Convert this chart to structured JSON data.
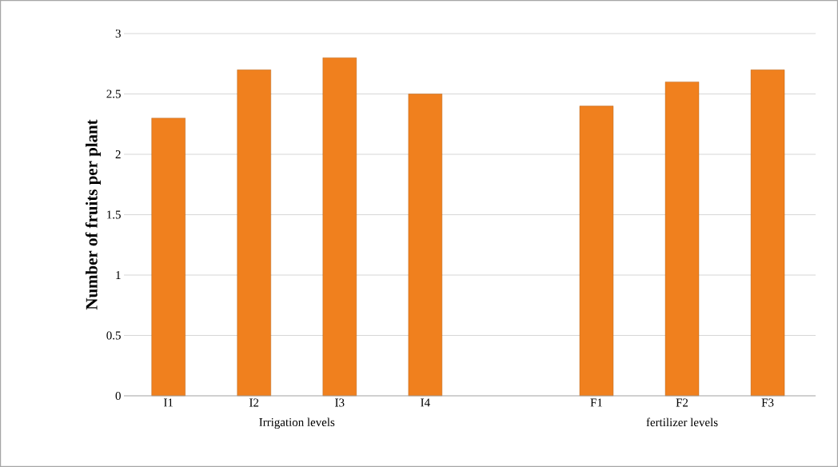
{
  "chart_data": {
    "type": "bar",
    "ylabel": "Number of fruits per plant",
    "categories": [
      "I1",
      "I2",
      "I3",
      "I4",
      null,
      "F1",
      "F2",
      "F3"
    ],
    "values": [
      2.3,
      2.7,
      2.8,
      2.5,
      null,
      2.4,
      2.6,
      2.7
    ],
    "color": "#f0801e",
    "ylim": [
      0,
      3
    ],
    "yticks": [
      0,
      0.5,
      1,
      1.5,
      2,
      2.5,
      3
    ],
    "grid": "y",
    "annotations": [
      "Irrigation levels",
      "fertilizer levels"
    ]
  }
}
